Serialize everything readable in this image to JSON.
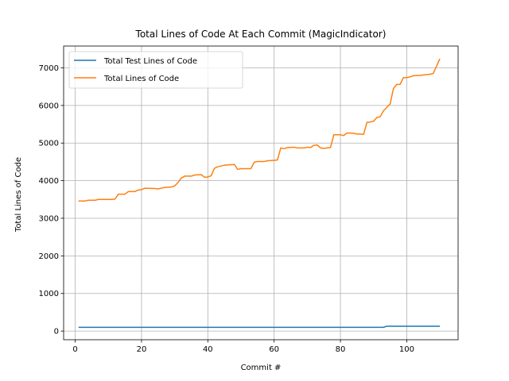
{
  "chart_data": {
    "type": "line",
    "title": "Total Lines of Code At Each Commit (MagicIndicator)",
    "xlabel": "Commit #",
    "ylabel": "Total Lines of Code",
    "xlim": [
      -3.5,
      115.5
    ],
    "ylim": [
      -230,
      7580
    ],
    "xticks": [
      0,
      20,
      40,
      60,
      80,
      100
    ],
    "yticks": [
      0,
      1000,
      2000,
      3000,
      4000,
      5000,
      6000,
      7000
    ],
    "grid": true,
    "legend_position": "upper-left",
    "series": [
      {
        "name": "Total Test Lines of Code",
        "color": "#1f77b4",
        "points": [
          [
            1,
            100
          ],
          [
            93,
            100
          ],
          [
            94,
            130
          ],
          [
            110,
            130
          ]
        ]
      },
      {
        "name": "Total Lines of Code",
        "color": "#ff7f0e",
        "points": [
          [
            1,
            3460
          ],
          [
            3,
            3460
          ],
          [
            4,
            3480
          ],
          [
            6,
            3480
          ],
          [
            7,
            3500
          ],
          [
            11,
            3500
          ],
          [
            12,
            3510
          ],
          [
            13,
            3640
          ],
          [
            15,
            3640
          ],
          [
            16,
            3710
          ],
          [
            18,
            3710
          ],
          [
            19,
            3750
          ],
          [
            20,
            3760
          ],
          [
            21,
            3800
          ],
          [
            24,
            3790
          ],
          [
            25,
            3780
          ],
          [
            26,
            3800
          ],
          [
            27,
            3820
          ],
          [
            29,
            3830
          ],
          [
            30,
            3860
          ],
          [
            31,
            3950
          ],
          [
            32,
            4070
          ],
          [
            33,
            4120
          ],
          [
            35,
            4120
          ],
          [
            36,
            4150
          ],
          [
            38,
            4160
          ],
          [
            39,
            4090
          ],
          [
            40,
            4100
          ],
          [
            41,
            4130
          ],
          [
            42,
            4330
          ],
          [
            43,
            4370
          ],
          [
            45,
            4410
          ],
          [
            46,
            4420
          ],
          [
            48,
            4430
          ],
          [
            49,
            4300
          ],
          [
            50,
            4320
          ],
          [
            53,
            4320
          ],
          [
            54,
            4490
          ],
          [
            55,
            4510
          ],
          [
            57,
            4510
          ],
          [
            58,
            4530
          ],
          [
            60,
            4540
          ],
          [
            61,
            4550
          ],
          [
            62,
            4870
          ],
          [
            63,
            4850
          ],
          [
            64,
            4880
          ],
          [
            66,
            4890
          ],
          [
            67,
            4870
          ],
          [
            69,
            4870
          ],
          [
            70,
            4890
          ],
          [
            71,
            4880
          ],
          [
            72,
            4940
          ],
          [
            73,
            4950
          ],
          [
            74,
            4870
          ],
          [
            75,
            4860
          ],
          [
            77,
            4880
          ],
          [
            78,
            5220
          ],
          [
            80,
            5220
          ],
          [
            81,
            5200
          ],
          [
            82,
            5270
          ],
          [
            84,
            5260
          ],
          [
            85,
            5240
          ],
          [
            86,
            5240
          ],
          [
            87,
            5230
          ],
          [
            88,
            5550
          ],
          [
            89,
            5560
          ],
          [
            90,
            5580
          ],
          [
            91,
            5680
          ],
          [
            92,
            5700
          ],
          [
            93,
            5860
          ],
          [
            94,
            5950
          ],
          [
            95,
            6040
          ],
          [
            96,
            6450
          ],
          [
            97,
            6560
          ],
          [
            98,
            6560
          ],
          [
            99,
            6740
          ],
          [
            100,
            6740
          ],
          [
            101,
            6760
          ],
          [
            102,
            6790
          ],
          [
            104,
            6800
          ],
          [
            105,
            6810
          ],
          [
            107,
            6830
          ],
          [
            108,
            6850
          ],
          [
            110,
            7240
          ]
        ]
      }
    ]
  }
}
